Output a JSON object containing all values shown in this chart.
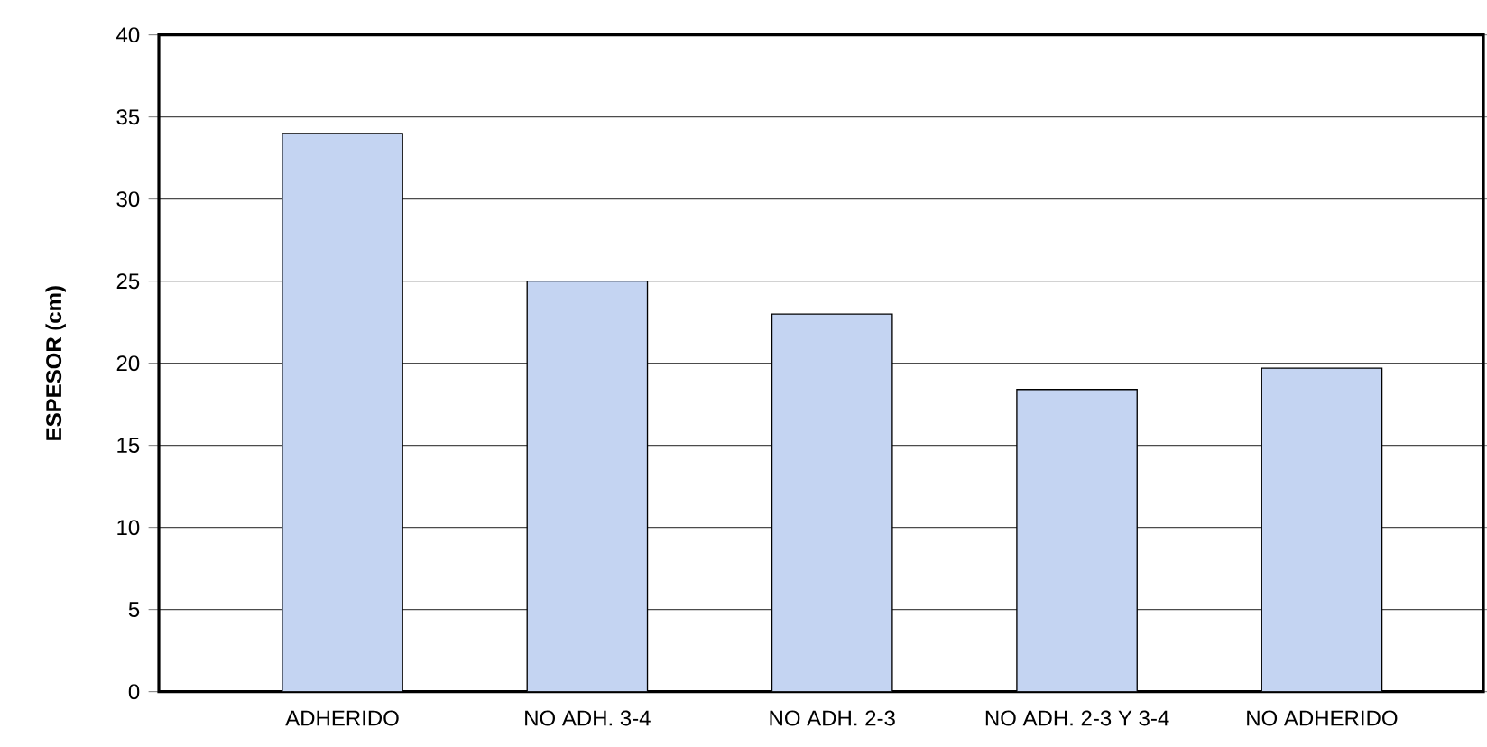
{
  "chart_data": {
    "type": "bar",
    "ylabel": "**ESPESOR (cm)**",
    "categories": [
      "ADHERIDO",
      "NO ADH. 3-4",
      "NO ADH. 2-3",
      "NO ADH. 2-3 Y 3-4",
      "NO ADHERIDO"
    ],
    "values": [
      34.0,
      25.0,
      23.0,
      18.4,
      19.7
    ],
    "color": "#c4d4f2",
    "ylim": [
      0,
      40
    ],
    "yticks": [
      0,
      5,
      10,
      15,
      20,
      25,
      30,
      35,
      40
    ],
    "grid": "y"
  }
}
